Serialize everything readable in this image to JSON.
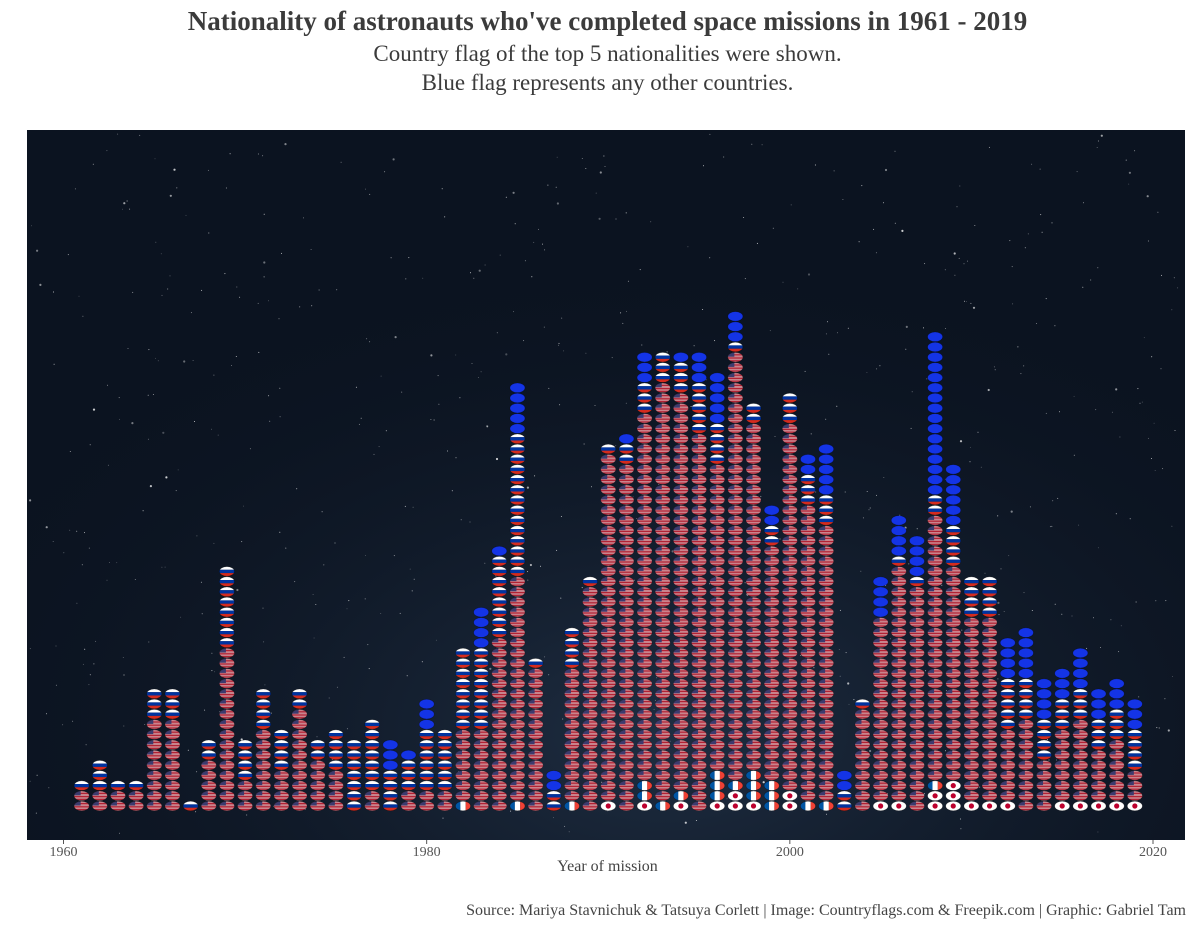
{
  "title": "Nationality of astronauts who've completed space missions in 1961 - 2019",
  "subtitle_line1": "Country flag of the top 5 nationalities were shown.",
  "subtitle_line2": "Blue flag represents any other countries.",
  "caption": "Source: Mariya Stavnichuk & Tatsuya Corlett | Image: Countryflags.com & Freepik.com | Graphic: Gabriel Tam",
  "colors": {
    "panel": "#0b1320",
    "usa": "#c9838c",
    "usa_stripe": "#b22234",
    "usa_canton": "#3c3b6e",
    "russia_white": "#ffffff",
    "russia_blue": "#0033a0",
    "russia_red": "#d52b1e",
    "other": "#1434e6",
    "japan_red": "#bc002d",
    "france_blue": "#0055a4",
    "france_red": "#ef4135"
  },
  "chart_data": {
    "type": "bar",
    "stacked": true,
    "mark": "flag icons, one per astronaut",
    "xlabel": "Year of mission",
    "ylabel": "",
    "xlim": [
      1960,
      2020
    ],
    "x_ticks": [
      1960,
      1980,
      2000,
      2020
    ],
    "grid": false,
    "legend": "none",
    "x": [
      1961,
      1962,
      1963,
      1964,
      1965,
      1966,
      1967,
      1968,
      1969,
      1970,
      1971,
      1972,
      1973,
      1974,
      1975,
      1976,
      1977,
      1978,
      1979,
      1980,
      1981,
      1982,
      1983,
      1984,
      1985,
      1986,
      1987,
      1988,
      1989,
      1990,
      1991,
      1992,
      1993,
      1994,
      1995,
      1996,
      1997,
      1998,
      1999,
      2000,
      2001,
      2002,
      2003,
      2004,
      2005,
      2006,
      2007,
      2008,
      2009,
      2010,
      2011,
      2012,
      2013,
      2014,
      2015,
      2016,
      2017,
      2018,
      2019
    ],
    "series": [
      {
        "key": "japan",
        "values": [
          0,
          0,
          0,
          0,
          0,
          0,
          0,
          0,
          0,
          0,
          0,
          0,
          0,
          0,
          0,
          0,
          0,
          0,
          0,
          0,
          0,
          0,
          0,
          0,
          0,
          0,
          0,
          0,
          0,
          1,
          0,
          1,
          0,
          1,
          0,
          1,
          2,
          1,
          0,
          2,
          0,
          0,
          0,
          0,
          1,
          1,
          0,
          2,
          3,
          1,
          1,
          1,
          0,
          0,
          1,
          1,
          1,
          1,
          1
        ]
      },
      {
        "key": "france",
        "values": [
          0,
          0,
          0,
          0,
          0,
          0,
          0,
          0,
          0,
          0,
          0,
          0,
          0,
          0,
          0,
          0,
          0,
          0,
          0,
          0,
          0,
          1,
          0,
          0,
          1,
          0,
          0,
          1,
          0,
          0,
          0,
          2,
          1,
          1,
          0,
          3,
          1,
          3,
          3,
          0,
          1,
          1,
          0,
          0,
          0,
          0,
          0,
          1,
          0,
          0,
          0,
          0,
          0,
          0,
          0,
          0,
          0,
          0,
          0
        ]
      },
      {
        "key": "usa",
        "values": [
          2,
          2,
          2,
          2,
          9,
          9,
          0,
          5,
          16,
          3,
          8,
          4,
          10,
          5,
          4,
          0,
          2,
          0,
          2,
          2,
          2,
          7,
          8,
          17,
          22,
          14,
          0,
          13,
          22,
          34,
          34,
          36,
          41,
          39,
          37,
          30,
          42,
          34,
          23,
          36,
          29,
          27,
          0,
          10,
          18,
          23,
          22,
          26,
          21,
          18,
          18,
          7,
          9,
          5,
          7,
          8,
          5,
          6,
          3
        ]
      },
      {
        "key": "russia",
        "values": [
          1,
          3,
          1,
          1,
          3,
          3,
          1,
          2,
          8,
          4,
          4,
          4,
          2,
          2,
          4,
          7,
          7,
          4,
          3,
          6,
          6,
          8,
          8,
          8,
          14,
          1,
          2,
          4,
          1,
          1,
          2,
          3,
          3,
          3,
          5,
          4,
          1,
          2,
          2,
          3,
          3,
          3,
          2,
          1,
          0,
          1,
          1,
          2,
          4,
          4,
          4,
          5,
          4,
          4,
          3,
          3,
          3,
          3,
          4
        ]
      },
      {
        "key": "other",
        "values": [
          0,
          0,
          0,
          0,
          0,
          0,
          0,
          0,
          0,
          0,
          0,
          0,
          0,
          0,
          0,
          0,
          0,
          3,
          1,
          3,
          0,
          0,
          4,
          1,
          5,
          0,
          2,
          0,
          0,
          0,
          1,
          3,
          0,
          1,
          3,
          5,
          3,
          0,
          2,
          0,
          2,
          5,
          2,
          0,
          4,
          4,
          4,
          16,
          6,
          0,
          0,
          4,
          5,
          4,
          3,
          4,
          3,
          3,
          3
        ]
      }
    ]
  }
}
